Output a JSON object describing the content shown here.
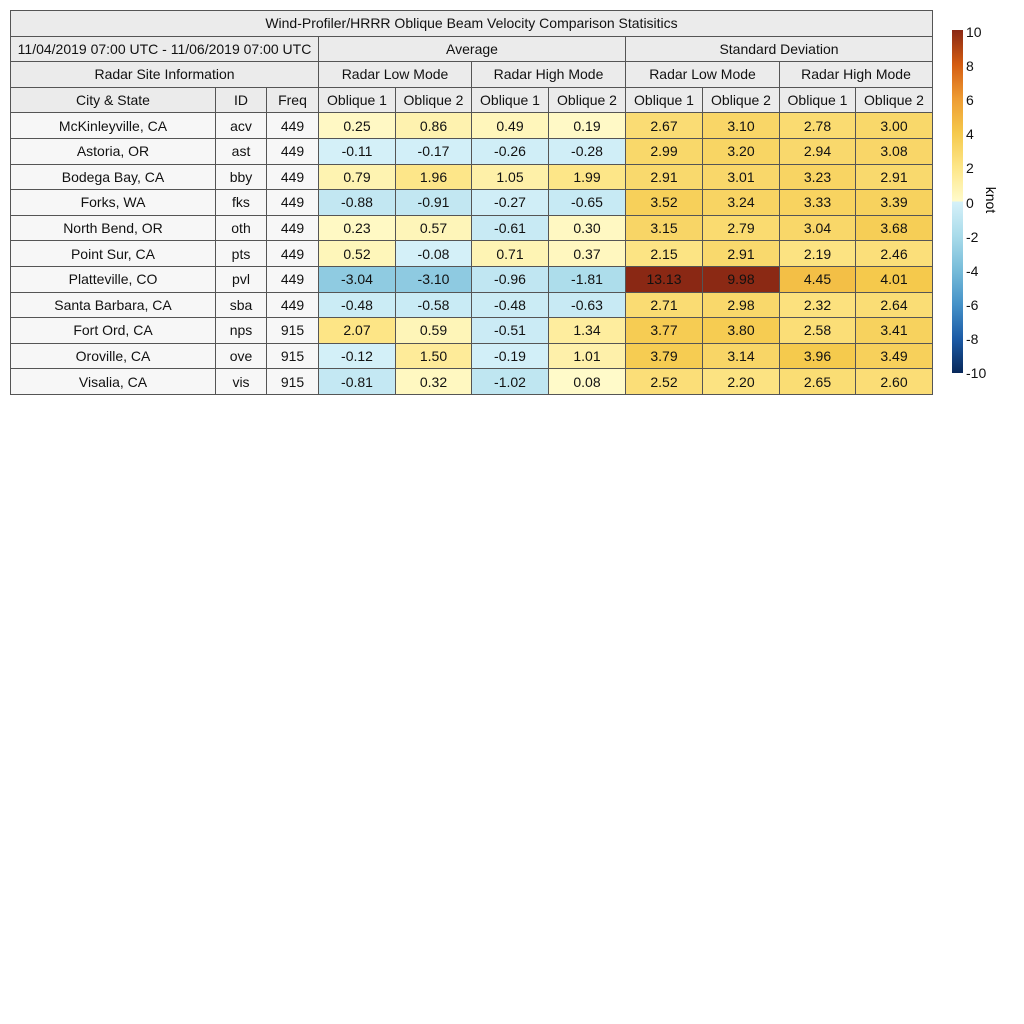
{
  "chart_data": {
    "type": "heatmap",
    "title": "Wind-Profiler/HRRR Oblique Beam Velocity Comparison Statisitics",
    "date_range": "11/04/2019 07:00 UTC - 11/06/2019 07:00 UTC",
    "groups": [
      "Average",
      "Standard Deviation"
    ],
    "site_info_label": "Radar Site Information",
    "modes": [
      "Radar Low Mode",
      "Radar High Mode",
      "Radar Low Mode",
      "Radar High Mode"
    ],
    "site_headers": [
      "City & State",
      "ID",
      "Freq"
    ],
    "beam_headers": [
      "Oblique 1",
      "Oblique 2",
      "Oblique 1",
      "Oblique 2",
      "Oblique 1",
      "Oblique 2",
      "Oblique 1",
      "Oblique 2"
    ],
    "rows": [
      {
        "city": "McKinleyville, CA",
        "id": "acv",
        "freq": "449",
        "values": [
          "0.25",
          "0.86",
          "0.49",
          "0.19",
          "2.67",
          "3.10",
          "2.78",
          "3.00"
        ]
      },
      {
        "city": "Astoria, OR",
        "id": "ast",
        "freq": "449",
        "values": [
          "-0.11",
          "-0.17",
          "-0.26",
          "-0.28",
          "2.99",
          "3.20",
          "2.94",
          "3.08"
        ]
      },
      {
        "city": "Bodega Bay, CA",
        "id": "bby",
        "freq": "449",
        "values": [
          "0.79",
          "1.96",
          "1.05",
          "1.99",
          "2.91",
          "3.01",
          "3.23",
          "2.91"
        ]
      },
      {
        "city": "Forks, WA",
        "id": "fks",
        "freq": "449",
        "values": [
          "-0.88",
          "-0.91",
          "-0.27",
          "-0.65",
          "3.52",
          "3.24",
          "3.33",
          "3.39"
        ]
      },
      {
        "city": "North Bend, OR",
        "id": "oth",
        "freq": "449",
        "values": [
          "0.23",
          "0.57",
          "-0.61",
          "0.30",
          "3.15",
          "2.79",
          "3.04",
          "3.68"
        ]
      },
      {
        "city": "Point Sur, CA",
        "id": "pts",
        "freq": "449",
        "values": [
          "0.52",
          "-0.08",
          "0.71",
          "0.37",
          "2.15",
          "2.91",
          "2.19",
          "2.46"
        ]
      },
      {
        "city": "Platteville, CO",
        "id": "pvl",
        "freq": "449",
        "values": [
          "-3.04",
          "-3.10",
          "-0.96",
          "-1.81",
          "13.13",
          "9.98",
          "4.45",
          "4.01"
        ]
      },
      {
        "city": "Santa Barbara, CA",
        "id": "sba",
        "freq": "449",
        "values": [
          "-0.48",
          "-0.58",
          "-0.48",
          "-0.63",
          "2.71",
          "2.98",
          "2.32",
          "2.64"
        ]
      },
      {
        "city": "Fort Ord, CA",
        "id": "nps",
        "freq": "915",
        "values": [
          "2.07",
          "0.59",
          "-0.51",
          "1.34",
          "3.77",
          "3.80",
          "2.58",
          "3.41"
        ]
      },
      {
        "city": "Oroville, CA",
        "id": "ove",
        "freq": "915",
        "values": [
          "-0.12",
          "1.50",
          "-0.19",
          "1.01",
          "3.79",
          "3.14",
          "3.96",
          "3.49"
        ]
      },
      {
        "city": "Visalia, CA",
        "id": "vis",
        "freq": "915",
        "values": [
          "-0.81",
          "0.32",
          "-1.02",
          "0.08",
          "2.52",
          "2.20",
          "2.65",
          "2.60"
        ]
      }
    ],
    "colorbar": {
      "range": [
        -10,
        10
      ],
      "ticks": [
        "10",
        "8",
        "6",
        "4",
        "2",
        "0",
        "-2",
        "-4",
        "-6",
        "-8",
        "-10"
      ],
      "unit": "knot",
      "colors_negative": [
        "#d6f1f9",
        "#a9dbea",
        "#77bcd9",
        "#4592c8",
        "#1c5ba6",
        "#08285a"
      ],
      "colors_positive": [
        "#fffbcc",
        "#fde688",
        "#f5c94c",
        "#ee9c33",
        "#d45c12",
        "#8a2814"
      ]
    }
  }
}
